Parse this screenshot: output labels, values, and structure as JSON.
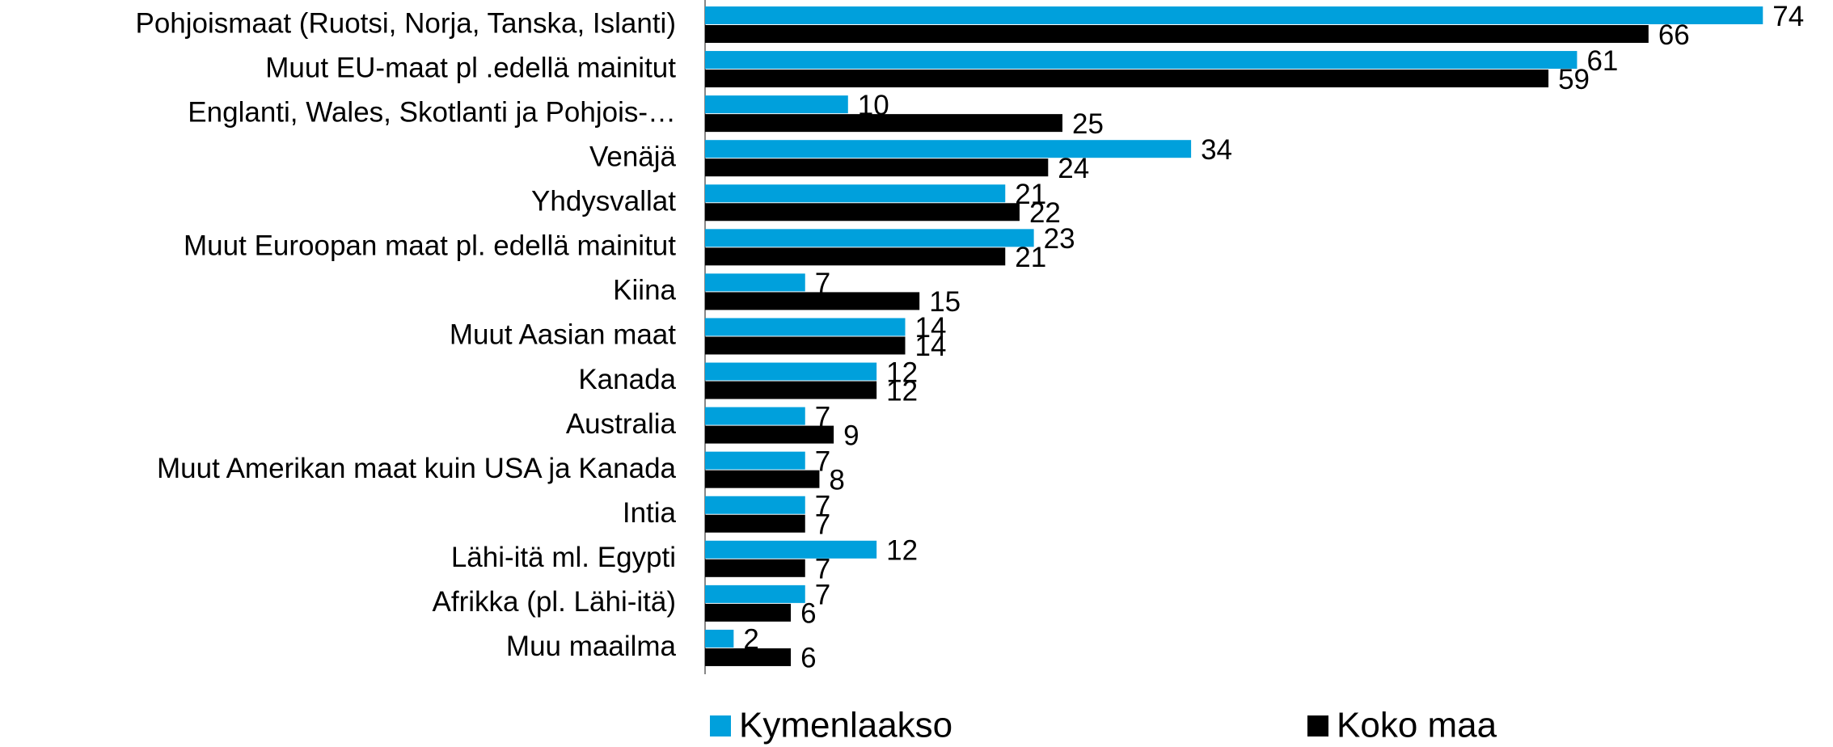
{
  "chart_data": {
    "type": "barh",
    "categories": [
      "Pohjoismaat (Ruotsi, Norja, Tanska, Islanti)",
      "Muut EU-maat pl .edellä mainitut",
      "Englanti, Wales, Skotlanti ja Pohjois-…",
      "Venäjä",
      "Yhdysvallat",
      "Muut Euroopan maat pl. edellä mainitut",
      "Kiina",
      "Muut Aasian maat",
      "Kanada",
      "Australia",
      "Muut Amerikan maat kuin USA ja Kanada",
      "Intia",
      "Lähi-itä ml. Egypti",
      "Afrikka (pl. Lähi-itä)",
      "Muu maailma"
    ],
    "series": [
      {
        "name": "Kymenlaakso",
        "color": "#00a0dc",
        "values": [
          74,
          61,
          10,
          34,
          21,
          23,
          7,
          14,
          12,
          7,
          7,
          7,
          12,
          7,
          2
        ]
      },
      {
        "name": "Koko maa",
        "color": "#000000",
        "values": [
          66,
          59,
          25,
          24,
          22,
          21,
          15,
          14,
          12,
          9,
          8,
          7,
          7,
          6,
          6
        ]
      }
    ],
    "xlim": [
      0,
      78
    ],
    "legend": "bottom"
  }
}
